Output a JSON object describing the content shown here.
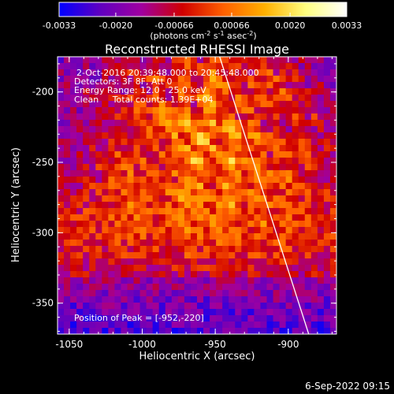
{
  "colorbar": {
    "tick_labels": [
      "-0.0033",
      "-0.0020",
      "-0.00066",
      "0.00066",
      "0.0020",
      "0.0033"
    ],
    "tick_values": [
      -0.0033,
      -0.002,
      -0.00066,
      0.00066,
      0.002,
      0.0033
    ],
    "range": [
      -0.0033,
      0.0033
    ],
    "units_parts": [
      "(photons cm",
      "-2",
      " s",
      "-1",
      " asec",
      "-2",
      ")"
    ],
    "colormap": [
      "#0000ff",
      "#6000c0",
      "#a000a0",
      "#d00000",
      "#ff6000",
      "#ffb000",
      "#ffff80",
      "#ffffff"
    ]
  },
  "chart_data": {
    "type": "heatmap",
    "title": "Reconstructed RHESSI Image",
    "xlabel": "Heliocentric X (arcsec)",
    "ylabel": "Heliocentric Y (arcsec)",
    "xlim": [
      -1058,
      -867
    ],
    "ylim": [
      -372,
      -175
    ],
    "x_ticks": [
      -1050,
      -1000,
      -950,
      -900
    ],
    "y_ticks": [
      -350,
      -300,
      -250,
      -200
    ],
    "x_tick_labels": [
      "-1050",
      "-1000",
      "-950",
      "-900"
    ],
    "y_tick_labels": [
      "-350",
      "-300",
      "-250",
      "-200"
    ],
    "peak": [
      -952,
      -220
    ],
    "limb_line": [
      [
        -947,
        -175
      ],
      [
        -886,
        -372
      ]
    ],
    "annotations": [
      "2-Oct-2016 20:39:48.000 to 20:45:48.000",
      "Detectors: 3F 8F, Att 0",
      "Energy Range: 12.0 - 25.0 keV",
      "Clean     Total counts: 1.39E+04"
    ],
    "peak_label": "Position of Peak = [-952,-220]"
  },
  "footer": {
    "timestamp": "6-Sep-2022 09:15"
  }
}
